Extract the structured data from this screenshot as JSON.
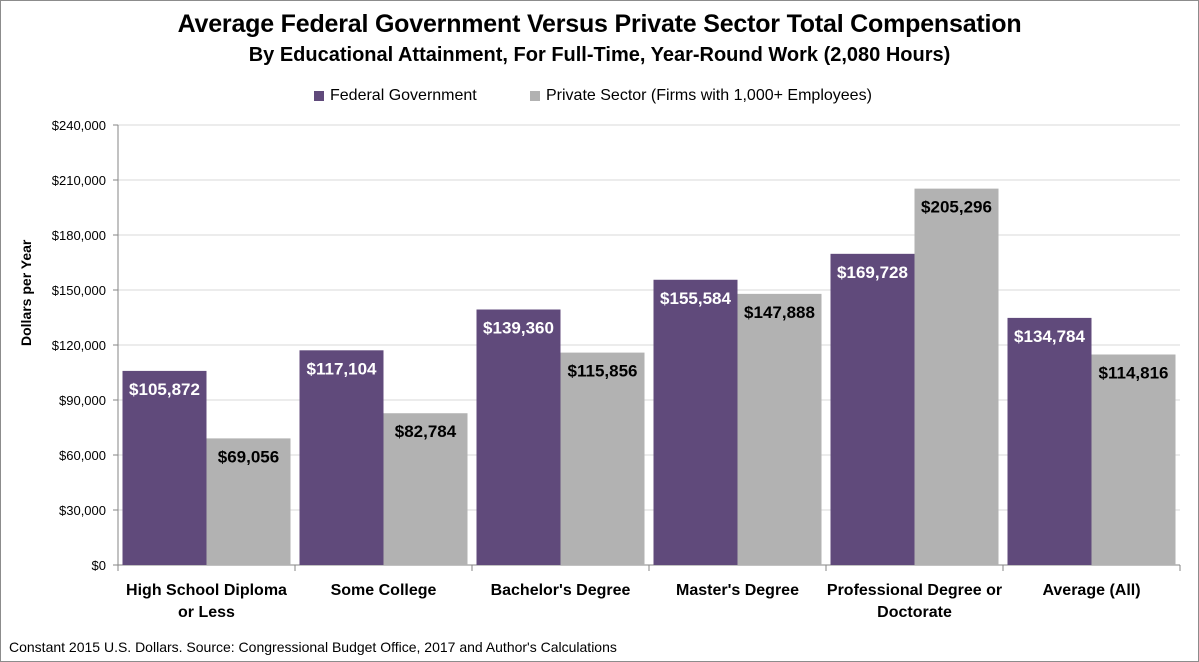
{
  "chart_data": {
    "type": "bar",
    "title": "Average Federal Government Versus Private Sector Total Compensation",
    "subtitle": "By Educational Attainment, For Full-Time, Year-Round Work (2,080 Hours)",
    "ylabel": "Dollars per Year",
    "xlabel": "",
    "ylim": [
      0,
      240000
    ],
    "yticks": [
      0,
      30000,
      60000,
      90000,
      120000,
      150000,
      180000,
      210000,
      240000
    ],
    "ytick_labels": [
      "$0",
      "$30,000",
      "$60,000",
      "$90,000",
      "$120,000",
      "$150,000",
      "$180,000",
      "$210,000",
      "$240,000"
    ],
    "grid": true,
    "legend_position": "top",
    "categories": [
      [
        "High School Diploma",
        "or Less"
      ],
      [
        "Some College"
      ],
      [
        "Bachelor's Degree"
      ],
      [
        "Master's Degree"
      ],
      [
        "Professional Degree or",
        "Doctorate"
      ],
      [
        "Average (All)"
      ]
    ],
    "series": [
      {
        "name": "Federal Government",
        "color": "#604a7b",
        "label_color": "#ffffff",
        "values": [
          105872,
          117104,
          139360,
          155584,
          169728,
          134784
        ],
        "labels": [
          "$105,872",
          "$117,104",
          "$139,360",
          "$155,584",
          "$169,728",
          "$134,784"
        ]
      },
      {
        "name": "Private Sector (Firms with 1,000+ Employees)",
        "color": "#b2b2b2",
        "label_color": "#000000",
        "values": [
          69056,
          82784,
          115856,
          147888,
          205296,
          114816
        ],
        "labels": [
          "$69,056",
          "$82,784",
          "$115,856",
          "$147,888",
          "$205,296",
          "$114,816"
        ]
      }
    ],
    "footnote": "Constant 2015 U.S. Dollars.  Source: Congressional Budget Office, 2017 and Author's Calculations"
  }
}
